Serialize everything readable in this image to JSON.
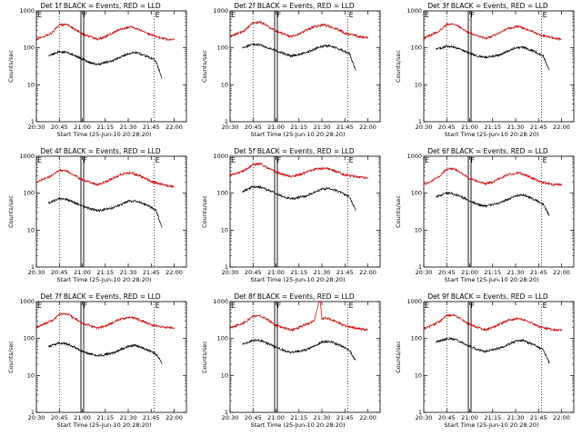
{
  "chart_data": [
    {
      "type": "line",
      "title": "Det 1f BLACK = Events, RED = LLD",
      "xlabel": "Start Time (25-Jun-10 20:28:20)",
      "ylabel": "Counts/sec",
      "xlim": [
        "20:30",
        "22:08"
      ],
      "ylim": [
        1,
        1000
      ],
      "yscale": "log",
      "x_ticks": [
        "20:30",
        "20:45",
        "21:00",
        "21:15",
        "21:30",
        "21:45",
        "22:00"
      ],
      "y_ticks": [
        "1",
        "10",
        "100",
        "1000"
      ],
      "markers": [
        {
          "label": "E",
          "time": "20:30"
        },
        {
          "label": "F",
          "time": "21:00"
        },
        {
          "label": "E",
          "time": "21:47"
        }
      ],
      "grid": "dotted verticals at 20:45, 21:00, 21:47",
      "series": [
        {
          "color": "#cc0000",
          "x": [
            "20:30",
            "20:40",
            "20:45",
            "20:50",
            "20:55",
            "21:00",
            "21:10",
            "21:15",
            "21:25",
            "21:32",
            "21:40",
            "21:45",
            "21:55",
            "22:00"
          ],
          "values": [
            170,
            250,
            420,
            430,
            320,
            240,
            170,
            200,
            320,
            370,
            280,
            220,
            170,
            170
          ]
        },
        {
          "color": "#000000",
          "x": [
            "20:38",
            "20:45",
            "20:50",
            "20:55",
            "21:00",
            "21:05",
            "21:10",
            "21:20",
            "21:30",
            "21:35",
            "21:42",
            "21:48",
            "21:52"
          ],
          "values": [
            62,
            78,
            75,
            62,
            50,
            40,
            35,
            45,
            70,
            75,
            60,
            45,
            15
          ]
        }
      ]
    },
    {
      "type": "line",
      "title": "Det 2f BLACK = Events, RED = LLD",
      "xlabel": "Start Time (25-Jun-10 20:28:20)",
      "ylabel": "Counts/sec",
      "xlim": [
        "20:30",
        "22:08"
      ],
      "ylim": [
        1,
        1000
      ],
      "yscale": "log",
      "x_ticks": [
        "20:30",
        "20:45",
        "21:00",
        "21:15",
        "21:30",
        "21:45",
        "22:00"
      ],
      "y_ticks": [
        "1",
        "10",
        "100",
        "1000"
      ],
      "markers": [
        {
          "label": "E",
          "time": "20:30"
        },
        {
          "label": "F",
          "time": "21:00"
        },
        {
          "label": "E",
          "time": "21:47"
        }
      ],
      "grid": "dotted verticals at 20:45, 21:00, 21:47",
      "series": [
        {
          "color": "#cc0000",
          "x": [
            "20:30",
            "20:40",
            "20:45",
            "20:50",
            "20:55",
            "21:00",
            "21:10",
            "21:15",
            "21:25",
            "21:32",
            "21:40",
            "21:45",
            "21:55",
            "22:00"
          ],
          "values": [
            200,
            300,
            480,
            500,
            380,
            280,
            200,
            240,
            380,
            420,
            320,
            250,
            200,
            190
          ]
        },
        {
          "color": "#000000",
          "x": [
            "20:38",
            "20:45",
            "20:50",
            "20:55",
            "21:00",
            "21:05",
            "21:10",
            "21:20",
            "21:30",
            "21:35",
            "21:42",
            "21:48",
            "21:52"
          ],
          "values": [
            100,
            125,
            120,
            100,
            85,
            70,
            60,
            75,
            110,
            115,
            90,
            70,
            25
          ]
        }
      ]
    },
    {
      "type": "line",
      "title": "Det 3f BLACK = Events, RED = LLD",
      "xlabel": "Start Time (25-Jun-10 20:28:20)",
      "ylabel": "Counts/sec",
      "xlim": [
        "20:30",
        "22:08"
      ],
      "ylim": [
        1,
        1000
      ],
      "yscale": "log",
      "x_ticks": [
        "20:30",
        "20:45",
        "21:00",
        "21:15",
        "21:30",
        "21:45",
        "22:00"
      ],
      "y_ticks": [
        "1",
        "10",
        "100",
        "1000"
      ],
      "markers": [
        {
          "label": "E",
          "time": "20:30"
        },
        {
          "label": "F",
          "time": "21:00"
        },
        {
          "label": "E",
          "time": "21:47"
        }
      ],
      "grid": "dotted verticals at 20:45, 21:00, 21:47",
      "series": [
        {
          "color": "#cc0000",
          "x": [
            "20:30",
            "20:40",
            "20:45",
            "20:50",
            "20:55",
            "21:00",
            "21:10",
            "21:15",
            "21:25",
            "21:32",
            "21:40",
            "21:45",
            "21:55",
            "22:00"
          ],
          "values": [
            180,
            280,
            430,
            440,
            330,
            250,
            180,
            210,
            330,
            380,
            290,
            230,
            180,
            170
          ]
        },
        {
          "color": "#000000",
          "x": [
            "20:38",
            "20:45",
            "20:50",
            "20:55",
            "21:00",
            "21:05",
            "21:10",
            "21:20",
            "21:30",
            "21:35",
            "21:42",
            "21:48",
            "21:52"
          ],
          "values": [
            90,
            110,
            105,
            88,
            70,
            60,
            55,
            65,
            100,
            105,
            80,
            60,
            25
          ]
        }
      ]
    },
    {
      "type": "line",
      "title": "Det 4f BLACK = Events, RED = LLD",
      "xlabel": "Start Time (25-Jun-10 20:28:20)",
      "ylabel": "Counts/sec",
      "xlim": [
        "20:30",
        "22:08"
      ],
      "ylim": [
        1,
        1000
      ],
      "yscale": "log",
      "x_ticks": [
        "20:30",
        "20:45",
        "21:00",
        "21:15",
        "21:30",
        "21:45",
        "22:00"
      ],
      "y_ticks": [
        "1",
        "10",
        "100",
        "1000"
      ],
      "markers": [
        {
          "label": "E",
          "time": "20:30"
        },
        {
          "label": "F",
          "time": "21:00"
        },
        {
          "label": "E",
          "time": "21:47"
        }
      ],
      "grid": "dotted verticals at 20:45, 21:00, 21:47",
      "series": [
        {
          "color": "#cc0000",
          "x": [
            "20:30",
            "20:40",
            "20:45",
            "20:50",
            "20:55",
            "21:00",
            "21:10",
            "21:15",
            "21:25",
            "21:32",
            "21:40",
            "21:45",
            "21:55",
            "22:00"
          ],
          "values": [
            200,
            300,
            420,
            400,
            300,
            230,
            170,
            200,
            320,
            360,
            270,
            210,
            160,
            150
          ]
        },
        {
          "color": "#000000",
          "x": [
            "20:38",
            "20:45",
            "20:50",
            "20:55",
            "21:00",
            "21:05",
            "21:10",
            "21:20",
            "21:30",
            "21:35",
            "21:42",
            "21:48",
            "21:52"
          ],
          "values": [
            55,
            70,
            68,
            55,
            45,
            38,
            33,
            40,
            60,
            62,
            48,
            35,
            12
          ]
        }
      ]
    },
    {
      "type": "line",
      "title": "Det 5f BLACK = Events, RED = LLD",
      "xlabel": "Start Time (25-Jun-10 20:28:20)",
      "ylabel": "Counts/sec",
      "xlim": [
        "20:30",
        "22:08"
      ],
      "ylim": [
        1,
        1000
      ],
      "yscale": "log",
      "x_ticks": [
        "20:30",
        "20:45",
        "21:00",
        "21:15",
        "21:30",
        "21:45",
        "22:00"
      ],
      "y_ticks": [
        "1",
        "10",
        "100",
        "1000"
      ],
      "markers": [
        {
          "label": "E",
          "time": "20:30"
        },
        {
          "label": "F",
          "time": "21:00"
        },
        {
          "label": "E",
          "time": "21:47"
        }
      ],
      "grid": "dotted verticals at 20:45, 21:00, 21:47",
      "series": [
        {
          "color": "#cc0000",
          "x": [
            "20:30",
            "20:40",
            "20:45",
            "20:50",
            "20:55",
            "21:00",
            "21:10",
            "21:15",
            "21:25",
            "21:32",
            "21:40",
            "21:45",
            "21:55",
            "22:00"
          ],
          "values": [
            300,
            420,
            600,
            620,
            480,
            370,
            280,
            310,
            440,
            480,
            380,
            310,
            270,
            260
          ]
        },
        {
          "color": "#000000",
          "x": [
            "20:38",
            "20:45",
            "20:50",
            "20:55",
            "21:00",
            "21:05",
            "21:10",
            "21:20",
            "21:30",
            "21:35",
            "21:42",
            "21:48",
            "21:52"
          ],
          "values": [
            110,
            150,
            145,
            120,
            100,
            80,
            70,
            85,
            130,
            135,
            105,
            80,
            35
          ]
        }
      ]
    },
    {
      "type": "line",
      "title": "Det 6f BLACK = Events, RED = LLD",
      "xlabel": "Start Time (25-Jun-10 20:28:20)",
      "ylabel": "Counts/sec",
      "xlim": [
        "20:30",
        "22:08"
      ],
      "ylim": [
        1,
        1000
      ],
      "yscale": "log",
      "x_ticks": [
        "20:30",
        "20:45",
        "21:00",
        "21:15",
        "21:30",
        "21:45",
        "22:00"
      ],
      "y_ticks": [
        "1",
        "10",
        "100",
        "1000"
      ],
      "markers": [
        {
          "label": "E",
          "time": "20:30"
        },
        {
          "label": "F",
          "time": "21:00"
        },
        {
          "label": "E",
          "time": "21:47"
        }
      ],
      "grid": "dotted verticals at 20:45, 21:00, 21:47",
      "series": [
        {
          "color": "#cc0000",
          "x": [
            "20:30",
            "20:40",
            "20:45",
            "20:50",
            "20:55",
            "21:00",
            "21:10",
            "21:15",
            "21:25",
            "21:32",
            "21:40",
            "21:45",
            "21:55",
            "22:00"
          ],
          "values": [
            170,
            280,
            450,
            460,
            340,
            250,
            180,
            200,
            320,
            360,
            270,
            210,
            170,
            170
          ]
        },
        {
          "color": "#000000",
          "x": [
            "20:38",
            "20:45",
            "20:50",
            "20:55",
            "21:00",
            "21:05",
            "21:10",
            "21:20",
            "21:30",
            "21:35",
            "21:42",
            "21:48",
            "21:52"
          ],
          "values": [
            80,
            100,
            95,
            78,
            62,
            50,
            45,
            55,
            85,
            90,
            68,
            50,
            25
          ]
        }
      ]
    },
    {
      "type": "line",
      "title": "Det 7f BLACK = Events, RED = LLD",
      "xlabel": "Start Time (25-Jun-10 20:28:20)",
      "ylabel": "Counts/sec",
      "xlim": [
        "20:30",
        "22:08"
      ],
      "ylim": [
        1,
        1000
      ],
      "yscale": "log",
      "x_ticks": [
        "20:30",
        "20:45",
        "21:00",
        "21:15",
        "21:30",
        "21:45",
        "22:00"
      ],
      "y_ticks": [
        "1",
        "10",
        "100",
        "1000"
      ],
      "markers": [
        {
          "label": "E",
          "time": "20:30"
        },
        {
          "label": "F",
          "time": "21:00"
        },
        {
          "label": "E",
          "time": "21:47"
        }
      ],
      "grid": "dotted verticals at 20:45, 21:00, 21:47",
      "series": [
        {
          "color": "#cc0000",
          "x": [
            "20:30",
            "20:40",
            "20:45",
            "20:50",
            "20:55",
            "21:00",
            "21:10",
            "21:15",
            "21:25",
            "21:32",
            "21:40",
            "21:45",
            "21:55",
            "22:00"
          ],
          "values": [
            200,
            300,
            450,
            470,
            350,
            260,
            190,
            220,
            340,
            380,
            290,
            230,
            200,
            190
          ]
        },
        {
          "color": "#000000",
          "x": [
            "20:38",
            "20:45",
            "20:50",
            "20:55",
            "21:00",
            "21:05",
            "21:10",
            "21:20",
            "21:30",
            "21:35",
            "21:42",
            "21:48",
            "21:52"
          ],
          "values": [
            60,
            75,
            72,
            58,
            45,
            38,
            34,
            40,
            62,
            65,
            50,
            38,
            22
          ]
        }
      ]
    },
    {
      "type": "line",
      "title": "Det 8f BLACK = Events, RED = LLD",
      "xlabel": "Start Time (25-Jun-10 20:28:20)",
      "ylabel": "Counts/sec",
      "xlim": [
        "20:30",
        "22:08"
      ],
      "ylim": [
        1,
        1000
      ],
      "yscale": "log",
      "x_ticks": [
        "20:30",
        "20:45",
        "21:00",
        "21:15",
        "21:30",
        "21:45",
        "22:00"
      ],
      "y_ticks": [
        "1",
        "10",
        "100",
        "1000"
      ],
      "markers": [
        {
          "label": "E",
          "time": "20:30"
        },
        {
          "label": "F",
          "time": "21:00"
        },
        {
          "label": "E",
          "time": "21:47"
        }
      ],
      "grid": "dotted verticals at 20:45, 21:00, 21:47",
      "series": [
        {
          "color": "#cc0000",
          "x": [
            "20:30",
            "20:40",
            "20:45",
            "20:50",
            "20:55",
            "21:00",
            "21:10",
            "21:15",
            "21:25",
            "21:28",
            "21:29",
            "21:30",
            "21:32",
            "21:40",
            "21:45",
            "21:55",
            "22:00"
          ],
          "values": [
            190,
            280,
            400,
            410,
            310,
            230,
            170,
            200,
            300,
            1000,
            1000,
            330,
            370,
            280,
            220,
            180,
            170
          ]
        },
        {
          "color": "#000000",
          "x": [
            "20:38",
            "20:45",
            "20:50",
            "20:55",
            "21:00",
            "21:05",
            "21:10",
            "21:20",
            "21:30",
            "21:35",
            "21:42",
            "21:48",
            "21:52"
          ],
          "values": [
            70,
            90,
            88,
            72,
            58,
            48,
            42,
            50,
            80,
            85,
            65,
            48,
            25
          ]
        }
      ]
    },
    {
      "type": "line",
      "title": "Det 9f BLACK = Events, RED = LLD",
      "xlabel": "Start Time (25-Jun-10 20:28:20)",
      "ylabel": "Counts/sec",
      "xlim": [
        "20:30",
        "22:08"
      ],
      "ylim": [
        1,
        1000
      ],
      "yscale": "log",
      "x_ticks": [
        "20:30",
        "20:45",
        "21:00",
        "21:15",
        "21:30",
        "21:45",
        "22:00"
      ],
      "y_ticks": [
        "1",
        "10",
        "100",
        "1000"
      ],
      "markers": [
        {
          "label": "E",
          "time": "20:30"
        },
        {
          "label": "F",
          "time": "21:00"
        },
        {
          "label": "E",
          "time": "21:47"
        }
      ],
      "grid": "dotted verticals at 20:45, 21:00, 21:47",
      "series": [
        {
          "color": "#cc0000",
          "x": [
            "20:30",
            "20:40",
            "20:45",
            "20:50",
            "20:55",
            "21:00",
            "21:10",
            "21:15",
            "21:25",
            "21:32",
            "21:40",
            "21:45",
            "21:55",
            "22:00"
          ],
          "values": [
            180,
            280,
            420,
            430,
            320,
            240,
            170,
            200,
            310,
            350,
            270,
            210,
            170,
            170
          ]
        },
        {
          "color": "#000000",
          "x": [
            "20:38",
            "20:45",
            "20:50",
            "20:55",
            "21:00",
            "21:05",
            "21:10",
            "21:20",
            "21:30",
            "21:35",
            "21:42",
            "21:48",
            "21:52"
          ],
          "values": [
            80,
            100,
            95,
            78,
            62,
            50,
            45,
            55,
            85,
            88,
            68,
            50,
            22
          ]
        }
      ]
    }
  ]
}
